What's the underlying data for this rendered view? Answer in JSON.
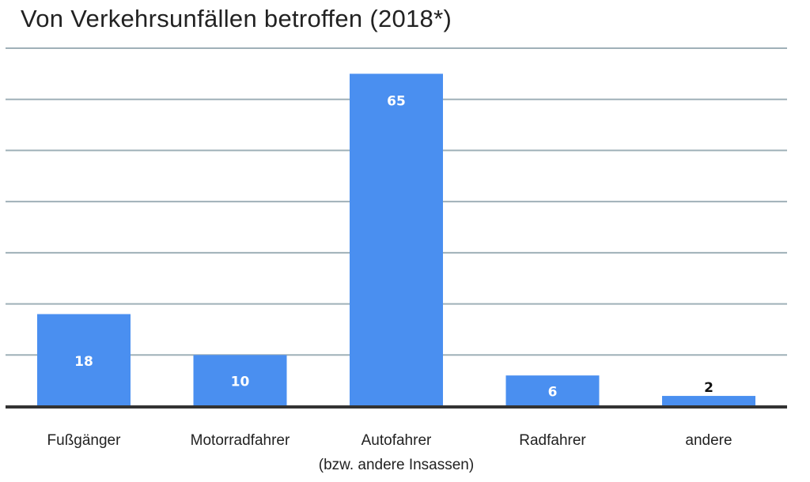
{
  "chart_data": {
    "type": "bar",
    "title": "Von Verkehrsunfällen betroffen (2018*)",
    "categories": [
      "Fußgänger",
      "Motorradfahrer",
      "Autofahrer",
      "Radfahrer",
      "andere"
    ],
    "category_sublabels": [
      "",
      "",
      "(bzw. andere Insassen)",
      "",
      ""
    ],
    "values": [
      18,
      10,
      65,
      6,
      2
    ],
    "xlabel": "",
    "ylabel": "",
    "ylim": [
      0,
      70
    ],
    "yticks": [
      10,
      20,
      30,
      40,
      50,
      60,
      70
    ],
    "grid": true,
    "bar_color": "#4a8ff0",
    "grid_color": "#9fb0b8",
    "axis_color": "#333333"
  }
}
